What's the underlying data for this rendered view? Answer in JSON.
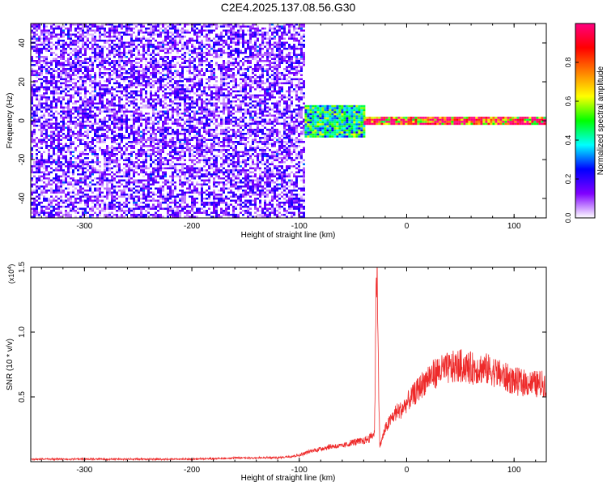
{
  "title": "C2E4.2025.137.08.56.G30",
  "chart_data": [
    {
      "type": "heatmap",
      "xlabel": "Height of straight line (km)",
      "ylabel": "Frequency (Hz)",
      "xlim": [
        -350,
        130
      ],
      "ylim": [
        -50,
        50
      ],
      "xticks": [
        -300,
        -200,
        -100,
        0,
        100
      ],
      "xtick_labels": [
        "-300",
        "-200",
        "-100",
        "0",
        "100"
      ],
      "yticks": [
        -40,
        -20,
        0,
        20,
        40
      ],
      "ytick_labels": [
        "-40",
        "-20",
        "0",
        "20",
        "40"
      ],
      "colorbar": {
        "label": "Normalized spectral amplitude",
        "range": [
          0,
          1
        ],
        "ticks": [
          0,
          0.2,
          0.4,
          0.6,
          0.8
        ],
        "tick_labels": [
          "0.0",
          "0.2",
          "0.4",
          "0.6",
          "0.8"
        ],
        "colormap": [
          "#ffffff",
          "#8000ff",
          "#0000ff",
          "#00ffff",
          "#00ff00",
          "#ffff00",
          "#ff8000",
          "#ff0000",
          "#ff0080"
        ]
      },
      "regions": [
        {
          "x": [
            -350,
            -95
          ],
          "freq": [
            -50,
            50
          ],
          "amplitude": 0.12,
          "description": "broadband noise"
        },
        {
          "x": [
            -95,
            -40
          ],
          "freq": [
            -8,
            8
          ],
          "amplitude": 0.45
        },
        {
          "x": [
            -40,
            130
          ],
          "freq": [
            -2,
            2
          ],
          "amplitude": 0.9
        }
      ],
      "grid": false
    },
    {
      "type": "line",
      "xlabel": "Height of straight line (km)",
      "ylabel": "SNR (10 * v/v)",
      "yscale_label": "(x10",
      "yscale_exponent": "4",
      "yscale_suffix": ")",
      "xlim": [
        -350,
        130
      ],
      "ylim": [
        0,
        1.5
      ],
      "xticks": [
        -300,
        -200,
        -100,
        0,
        100
      ],
      "xtick_labels": [
        "-300",
        "-200",
        "-100",
        "0",
        "100"
      ],
      "yticks": [
        0.5,
        1.0,
        1.5
      ],
      "ytick_labels": [
        "0.5",
        "1.0",
        "1.5"
      ],
      "series": [
        {
          "color": "#ee2a2a",
          "x": [
            -350,
            -300,
            -250,
            -200,
            -150,
            -120,
            -100,
            -90,
            -80,
            -70,
            -60,
            -50,
            -40,
            -35,
            -30,
            -28,
            -25,
            -20,
            -15,
            -10,
            -5,
            0,
            5,
            10,
            20,
            30,
            40,
            50,
            60,
            70,
            80,
            90,
            100,
            110,
            120,
            130
          ],
          "y": [
            0.02,
            0.02,
            0.02,
            0.02,
            0.03,
            0.03,
            0.05,
            0.08,
            0.1,
            0.12,
            0.12,
            0.15,
            0.16,
            0.18,
            0.22,
            1.5,
            0.12,
            0.25,
            0.32,
            0.38,
            0.4,
            0.45,
            0.5,
            0.55,
            0.65,
            0.7,
            0.72,
            0.74,
            0.72,
            0.72,
            0.7,
            0.66,
            0.62,
            0.61,
            0.6,
            0.6
          ]
        }
      ],
      "grid": false
    }
  ]
}
